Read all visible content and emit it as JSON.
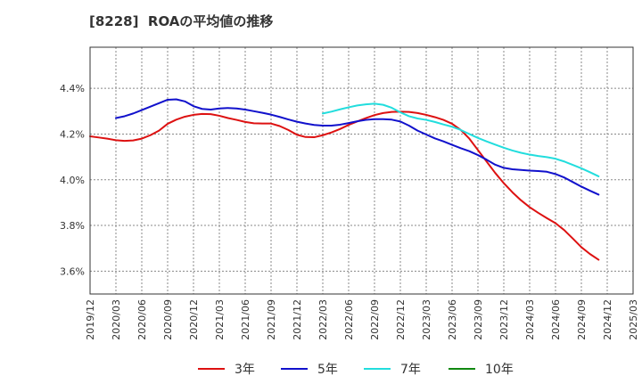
{
  "chart_data": {
    "type": "line",
    "title": "[8228]  ROAの平均値の推移",
    "x_ticks": [
      "2019/12",
      "2020/03",
      "2020/06",
      "2020/09",
      "2020/12",
      "2021/03",
      "2021/06",
      "2021/09",
      "2021/12",
      "2022/03",
      "2022/06",
      "2022/09",
      "2022/12",
      "2023/03",
      "2023/06",
      "2023/09",
      "2023/12",
      "2024/03",
      "2024/06",
      "2024/09",
      "2024/12",
      "2025/03"
    ],
    "y_ticks": [
      3.6,
      3.8,
      4.0,
      4.2,
      4.4
    ],
    "y_tick_format": "%",
    "ylim": [
      3.5,
      4.58
    ],
    "grid": true,
    "legend_position": "bottom",
    "series": [
      {
        "name": "3年",
        "color": "#dd1111",
        "points": [
          [
            "2019/12",
            4.19
          ],
          [
            "2020/01",
            4.185
          ],
          [
            "2020/02",
            4.18
          ],
          [
            "2020/03",
            4.173
          ],
          [
            "2020/04",
            4.17
          ],
          [
            "2020/05",
            4.172
          ],
          [
            "2020/06",
            4.18
          ],
          [
            "2020/07",
            4.195
          ],
          [
            "2020/08",
            4.215
          ],
          [
            "2020/09",
            4.245
          ],
          [
            "2020/10",
            4.263
          ],
          [
            "2020/11",
            4.276
          ],
          [
            "2020/12",
            4.284
          ],
          [
            "2021/01",
            4.288
          ],
          [
            "2021/02",
            4.287
          ],
          [
            "2021/03",
            4.28
          ],
          [
            "2021/04",
            4.27
          ],
          [
            "2021/05",
            4.262
          ],
          [
            "2021/06",
            4.253
          ],
          [
            "2021/07",
            4.247
          ],
          [
            "2021/08",
            4.246
          ],
          [
            "2021/09",
            4.246
          ],
          [
            "2021/10",
            4.235
          ],
          [
            "2021/11",
            4.218
          ],
          [
            "2021/12",
            4.197
          ],
          [
            "2022/01",
            4.187
          ],
          [
            "2022/02",
            4.186
          ],
          [
            "2022/03",
            4.195
          ],
          [
            "2022/04",
            4.207
          ],
          [
            "2022/05",
            4.222
          ],
          [
            "2022/06",
            4.24
          ],
          [
            "2022/07",
            4.255
          ],
          [
            "2022/08",
            4.27
          ],
          [
            "2022/09",
            4.283
          ],
          [
            "2022/10",
            4.292
          ],
          [
            "2022/11",
            4.297
          ],
          [
            "2022/12",
            4.298
          ],
          [
            "2023/01",
            4.297
          ],
          [
            "2023/02",
            4.292
          ],
          [
            "2023/03",
            4.284
          ],
          [
            "2023/04",
            4.274
          ],
          [
            "2023/05",
            4.262
          ],
          [
            "2023/06",
            4.245
          ],
          [
            "2023/07",
            4.218
          ],
          [
            "2023/08",
            4.18
          ],
          [
            "2023/09",
            4.13
          ],
          [
            "2023/10",
            4.08
          ],
          [
            "2023/11",
            4.03
          ],
          [
            "2023/12",
            3.985
          ],
          [
            "2024/01",
            3.945
          ],
          [
            "2024/02",
            3.91
          ],
          [
            "2024/03",
            3.88
          ],
          [
            "2024/04",
            3.855
          ],
          [
            "2024/05",
            3.832
          ],
          [
            "2024/06",
            3.81
          ],
          [
            "2024/07",
            3.78
          ],
          [
            "2024/08",
            3.743
          ],
          [
            "2024/09",
            3.705
          ],
          [
            "2024/10",
            3.675
          ],
          [
            "2024/11",
            3.65
          ]
        ]
      },
      {
        "name": "5年",
        "color": "#1111cc",
        "points": [
          [
            "2020/03",
            4.27
          ],
          [
            "2020/04",
            4.278
          ],
          [
            "2020/05",
            4.29
          ],
          [
            "2020/06",
            4.305
          ],
          [
            "2020/07",
            4.32
          ],
          [
            "2020/08",
            4.335
          ],
          [
            "2020/09",
            4.35
          ],
          [
            "2020/10",
            4.352
          ],
          [
            "2020/11",
            4.343
          ],
          [
            "2020/12",
            4.322
          ],
          [
            "2021/01",
            4.31
          ],
          [
            "2021/02",
            4.307
          ],
          [
            "2021/03",
            4.312
          ],
          [
            "2021/04",
            4.314
          ],
          [
            "2021/05",
            4.312
          ],
          [
            "2021/06",
            4.307
          ],
          [
            "2021/07",
            4.3
          ],
          [
            "2021/08",
            4.293
          ],
          [
            "2021/09",
            4.285
          ],
          [
            "2021/10",
            4.275
          ],
          [
            "2021/11",
            4.264
          ],
          [
            "2021/12",
            4.254
          ],
          [
            "2022/01",
            4.246
          ],
          [
            "2022/02",
            4.24
          ],
          [
            "2022/03",
            4.237
          ],
          [
            "2022/04",
            4.237
          ],
          [
            "2022/05",
            4.241
          ],
          [
            "2022/06",
            4.248
          ],
          [
            "2022/07",
            4.256
          ],
          [
            "2022/08",
            4.262
          ],
          [
            "2022/09",
            4.265
          ],
          [
            "2022/10",
            4.265
          ],
          [
            "2022/11",
            4.263
          ],
          [
            "2022/12",
            4.255
          ],
          [
            "2023/01",
            4.237
          ],
          [
            "2023/02",
            4.215
          ],
          [
            "2023/03",
            4.198
          ],
          [
            "2023/04",
            4.181
          ],
          [
            "2023/05",
            4.168
          ],
          [
            "2023/06",
            4.153
          ],
          [
            "2023/07",
            4.138
          ],
          [
            "2023/08",
            4.125
          ],
          [
            "2023/09",
            4.108
          ],
          [
            "2023/10",
            4.088
          ],
          [
            "2023/11",
            4.066
          ],
          [
            "2023/12",
            4.052
          ],
          [
            "2024/01",
            4.046
          ],
          [
            "2024/02",
            4.043
          ],
          [
            "2024/03",
            4.04
          ],
          [
            "2024/04",
            4.038
          ],
          [
            "2024/05",
            4.035
          ],
          [
            "2024/06",
            4.025
          ],
          [
            "2024/07",
            4.01
          ],
          [
            "2024/08",
            3.99
          ],
          [
            "2024/09",
            3.97
          ],
          [
            "2024/10",
            3.952
          ],
          [
            "2024/11",
            3.935
          ]
        ]
      },
      {
        "name": "7年",
        "color": "#22dddd",
        "points": [
          [
            "2022/03",
            4.29
          ],
          [
            "2022/04",
            4.298
          ],
          [
            "2022/05",
            4.308
          ],
          [
            "2022/06",
            4.317
          ],
          [
            "2022/07",
            4.325
          ],
          [
            "2022/08",
            4.33
          ],
          [
            "2022/09",
            4.333
          ],
          [
            "2022/10",
            4.328
          ],
          [
            "2022/11",
            4.315
          ],
          [
            "2022/12",
            4.295
          ],
          [
            "2023/01",
            4.278
          ],
          [
            "2023/02",
            4.268
          ],
          [
            "2023/03",
            4.262
          ],
          [
            "2023/04",
            4.253
          ],
          [
            "2023/05",
            4.242
          ],
          [
            "2023/06",
            4.232
          ],
          [
            "2023/07",
            4.218
          ],
          [
            "2023/08",
            4.2
          ],
          [
            "2023/09",
            4.183
          ],
          [
            "2023/10",
            4.168
          ],
          [
            "2023/11",
            4.154
          ],
          [
            "2023/12",
            4.14
          ],
          [
            "2024/01",
            4.128
          ],
          [
            "2024/02",
            4.118
          ],
          [
            "2024/03",
            4.11
          ],
          [
            "2024/04",
            4.104
          ],
          [
            "2024/05",
            4.099
          ],
          [
            "2024/06",
            4.092
          ],
          [
            "2024/07",
            4.08
          ],
          [
            "2024/08",
            4.065
          ],
          [
            "2024/09",
            4.05
          ],
          [
            "2024/10",
            4.033
          ],
          [
            "2024/11",
            4.015
          ]
        ]
      },
      {
        "name": "10年",
        "color": "#118811",
        "points": []
      }
    ]
  }
}
